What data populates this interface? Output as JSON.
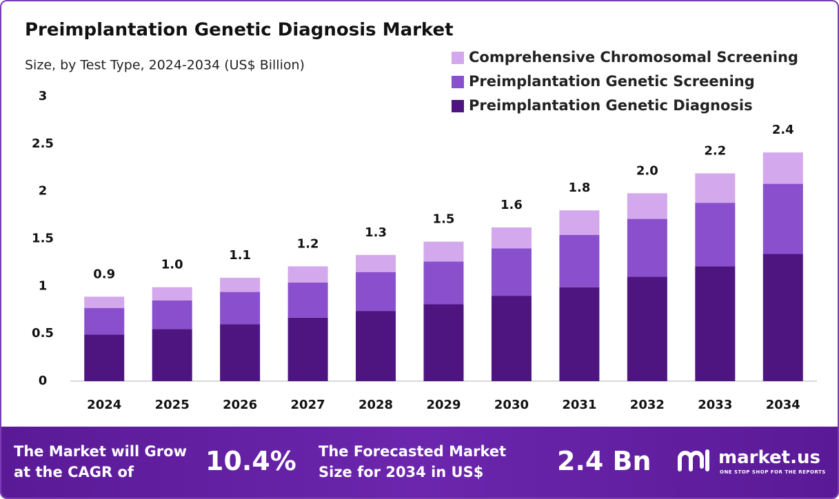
{
  "chart_data": {
    "type": "stacked-bar",
    "title": "Preimplantation Genetic Diagnosis Market",
    "subtitle": "Size, by Test Type, 2024-2034 (US$ Billion)",
    "categories": [
      "2024",
      "2025",
      "2026",
      "2027",
      "2028",
      "2029",
      "2030",
      "2031",
      "2032",
      "2033",
      "2034"
    ],
    "series": [
      {
        "name": "Preimplantation Genetic Diagnosis",
        "color": "#4e1580",
        "values": [
          0.49,
          0.55,
          0.6,
          0.67,
          0.74,
          0.81,
          0.9,
          0.99,
          1.1,
          1.21,
          1.34
        ]
      },
      {
        "name": "Preimplantation Genetic Screening",
        "color": "#8a4fcc",
        "values": [
          0.28,
          0.3,
          0.34,
          0.37,
          0.41,
          0.45,
          0.5,
          0.55,
          0.61,
          0.67,
          0.74
        ]
      },
      {
        "name": "Comprehensive Chromosomal Screening",
        "color": "#d3a8ec",
        "values": [
          0.12,
          0.14,
          0.15,
          0.17,
          0.18,
          0.21,
          0.22,
          0.26,
          0.27,
          0.31,
          0.33
        ]
      }
    ],
    "totals": {
      "values": [
        0.9,
        1.0,
        1.1,
        1.2,
        1.3,
        1.5,
        1.6,
        1.8,
        2.0,
        2.2,
        2.4
      ],
      "value_labels": [
        "0.9",
        "1.0",
        "1.1",
        "1.2",
        "1.3",
        "1.5",
        "1.6",
        "1.8",
        "2.0",
        "2.2",
        "2.4"
      ]
    },
    "ylim": [
      0,
      3
    ],
    "yticks": [
      0,
      0.5,
      1,
      1.5,
      2,
      2.5,
      3
    ],
    "grid": false,
    "legend": "top-right"
  },
  "footer": {
    "cagr_text": [
      "The Market will Grow",
      "at the CAGR of"
    ],
    "cagr": "10.4%",
    "forecast_text": [
      "The Forecasted Market",
      "Size for 2034 in US$"
    ],
    "forecast": "2.4 Bn",
    "brand": "market.us",
    "tagline": "ONE STOP SHOP FOR THE REPORTS"
  }
}
